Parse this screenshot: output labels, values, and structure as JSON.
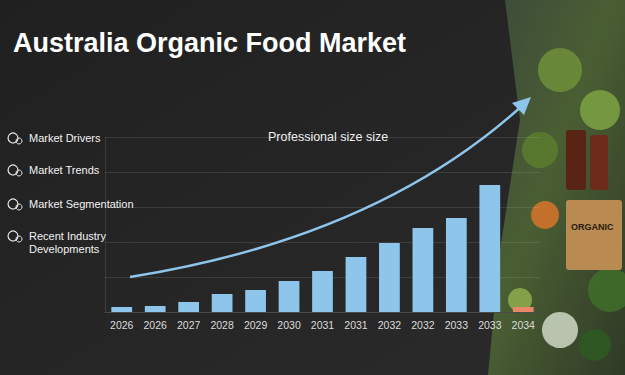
{
  "chart_data": {
    "type": "bar",
    "title": "Australia Organic Food Market",
    "subtitle": "Professional size size",
    "menu": [
      "Market Drivers",
      "Market Trends",
      "Market Segmentation",
      "Recent Industry Developments"
    ],
    "photo_label": "ORGANIC",
    "categories": [
      "2026",
      "2026",
      "2027",
      "2028",
      "2029",
      "2030",
      "2031",
      "2031",
      "2032",
      "2032",
      "2033",
      "2033",
      "2034"
    ],
    "values": [
      5,
      6,
      10,
      18,
      22,
      31,
      41,
      55,
      69,
      84,
      94,
      127,
      5
    ],
    "colors": [
      "#8ec5ea",
      "#8ec5ea",
      "#8ec5ea",
      "#8ec5ea",
      "#8ec5ea",
      "#8ec5ea",
      "#8ec5ea",
      "#8ec5ea",
      "#8ec5ea",
      "#8ec5ea",
      "#8ec5ea",
      "#8ec5ea",
      "#e8876a"
    ],
    "ylim": [
      0,
      175
    ],
    "yticks": [
      0,
      35,
      70,
      105,
      140,
      175
    ],
    "grid": true,
    "tick_labels": "x"
  }
}
